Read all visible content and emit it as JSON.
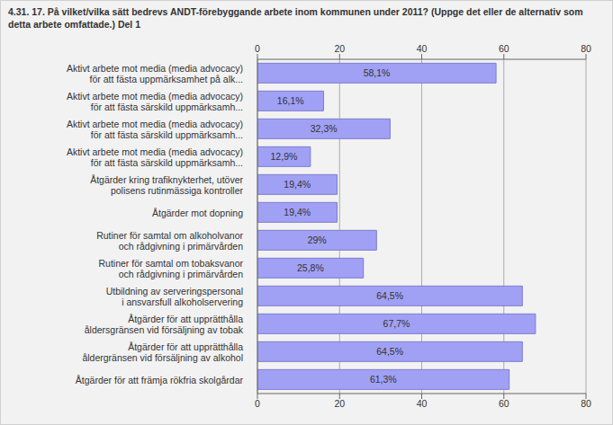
{
  "chart_data": {
    "type": "bar",
    "orientation": "horizontal",
    "title": "4.31. 17. På vilket/vilka sätt bedrevs ANDT-förebyggande arbete inom kommunen under 2011? (Uppge det eller de alternativ som detta arbete omfattade.) Del 1",
    "categories": [
      "Aktivt arbete mot media (media advocacy)\nför att fästa uppmärksamhet på alk...",
      "Aktivt arbete mot media (media advocacy)\nför att fästa särskild uppmärksamh...",
      "Aktivt arbete mot media (media advocacy)\nför att fästa särskild uppmärksamh...",
      "Aktivt arbete mot media (media advocacy)\nför att fästa särskild uppmärksamh...",
      "Åtgärder kring trafiknykterhet, utöver\npolisens rutinmässiga kontroller",
      "Åtgärder mot dopning",
      "Rutiner för samtal om alkoholvanor\noch rådgivning i primärvården",
      "Rutiner för samtal om tobaksvanor\noch rådgivning i primärvården",
      "Utbildning av serveringspersonal\ni ansvarsfull alkoholservering",
      "Åtgärder för att upprätthålla\nåldersgränsen vid försäljning av tobak",
      "Åtgärder för att upprätthålla\nåldergränsen vid försäljning av alkohol",
      "Åtgärder för att främja rökfria skolgårdar"
    ],
    "values": [
      58.1,
      16.1,
      32.3,
      12.9,
      19.4,
      19.4,
      29,
      25.8,
      64.5,
      67.7,
      64.5,
      61.3
    ],
    "value_labels": [
      "58,1%",
      "16,1%",
      "32,3%",
      "12,9%",
      "19,4%",
      "19,4%",
      "29%",
      "25,8%",
      "64,5%",
      "67,7%",
      "64,5%",
      "61,3%"
    ],
    "color": "#a0a0f4",
    "xlim": [
      0,
      80
    ],
    "xticks": [
      0,
      20,
      40,
      60,
      80
    ],
    "grid": true,
    "data_labels": true
  }
}
